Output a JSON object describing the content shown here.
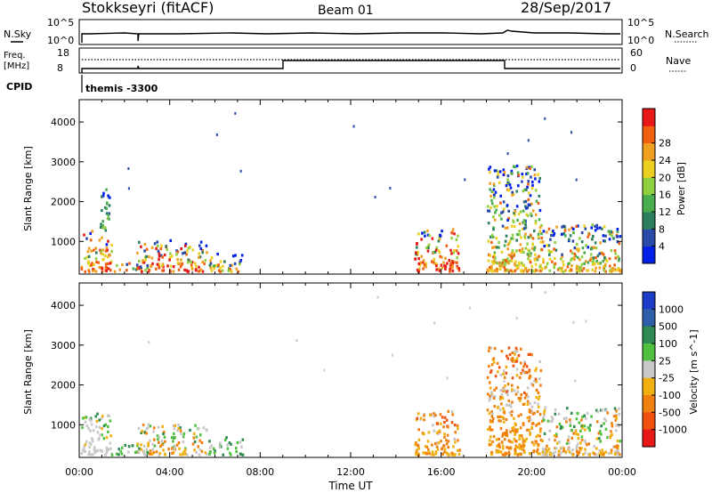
{
  "header": {
    "station": "Stokkseyri (fitACF)",
    "beam": "Beam 01",
    "date": "28/Sep/2017"
  },
  "params": {
    "nsky_label": "N.Sky",
    "nsky_ticks": [
      "10^5",
      "10^0"
    ],
    "nsearch_label": "N.Search",
    "nsearch_ticks": [
      "10^5",
      "10^0"
    ],
    "freq_label_line1": "Freq.",
    "freq_label_line2": "[MHz]",
    "freq_ticks": [
      "18",
      "8"
    ],
    "nave_label": "Nave",
    "nave_ticks": [
      "60",
      "0"
    ],
    "cpid_label": "CPID",
    "cpid_value": "themis -3300"
  },
  "chart_data": [
    {
      "type": "heatmap",
      "panel": "power",
      "xlabel": "",
      "ylabel": "Slant Range [km]",
      "ylim": [
        180,
        4560
      ],
      "yticks": [
        "1000",
        "2000",
        "3000",
        "4000"
      ],
      "xlim_hours": [
        0,
        24
      ],
      "colorbar": {
        "label": "Power [dB]",
        "ticks": [
          "4",
          "8",
          "12",
          "16",
          "20",
          "24",
          "28"
        ],
        "colors": [
          "#0020e8",
          "#2a4aa8",
          "#2e7e60",
          "#4aae50",
          "#8ed040",
          "#ecd020",
          "#f0a020",
          "#f06010",
          "#e81818"
        ]
      },
      "scatter_clusters": [
        {
          "t0": 0.05,
          "t1": 1.4,
          "r0": 180,
          "r1": 1250,
          "level": "high"
        },
        {
          "t0": 0.9,
          "t1": 1.3,
          "r0": 1300,
          "r1": 2450,
          "level": "low"
        },
        {
          "t0": 1.4,
          "t1": 3.0,
          "r0": 180,
          "r1": 450,
          "level": "mid"
        },
        {
          "t0": 2.5,
          "t1": 5.6,
          "r0": 180,
          "r1": 1000,
          "level": "high"
        },
        {
          "t0": 5.7,
          "t1": 7.2,
          "r0": 180,
          "r1": 650,
          "level": "mid"
        },
        {
          "t0": 14.8,
          "t1": 16.8,
          "r0": 180,
          "r1": 1300,
          "level": "high"
        },
        {
          "t0": 18.0,
          "t1": 20.4,
          "r0": 180,
          "r1": 2900,
          "level": "mid"
        },
        {
          "t0": 20.4,
          "t1": 23.9,
          "r0": 180,
          "r1": 1400,
          "level": "mid"
        }
      ]
    },
    {
      "type": "heatmap",
      "panel": "velocity",
      "xlabel": "Time UT",
      "ylabel": "Slant Range [km]",
      "ylim": [
        180,
        4560
      ],
      "yticks": [
        "1000",
        "2000",
        "3000",
        "4000"
      ],
      "xticks": [
        "00:00",
        "04:00",
        "08:00",
        "12:00",
        "16:00",
        "20:00",
        "00:00"
      ],
      "xlim_hours": [
        0,
        24
      ],
      "colorbar": {
        "label": "Velocity [m s^-1]",
        "ticks": [
          "1000",
          "500",
          "100",
          "25",
          "-25",
          "-100",
          "-500",
          "-1000"
        ],
        "colors": [
          "#1c3cc8",
          "#2e5ea8",
          "#2e8a50",
          "#50c040",
          "#c8c8c8",
          "#f0b010",
          "#f08010",
          "#f05010",
          "#e81818"
        ]
      },
      "scatter_clusters": [
        {
          "t0": 0.05,
          "t1": 1.4,
          "r0": 180,
          "r1": 1250,
          "level": "grey"
        },
        {
          "t0": 1.4,
          "t1": 3.0,
          "r0": 180,
          "r1": 450,
          "level": "green"
        },
        {
          "t0": 2.5,
          "t1": 5.6,
          "r0": 180,
          "r1": 1000,
          "level": "mix"
        },
        {
          "t0": 5.7,
          "t1": 7.2,
          "r0": 180,
          "r1": 650,
          "level": "green"
        },
        {
          "t0": 14.8,
          "t1": 16.8,
          "r0": 180,
          "r1": 1300,
          "level": "orange"
        },
        {
          "t0": 18.0,
          "t1": 20.4,
          "r0": 180,
          "r1": 2900,
          "level": "orange"
        },
        {
          "t0": 20.4,
          "t1": 23.9,
          "r0": 180,
          "r1": 1400,
          "level": "mix"
        }
      ]
    }
  ]
}
